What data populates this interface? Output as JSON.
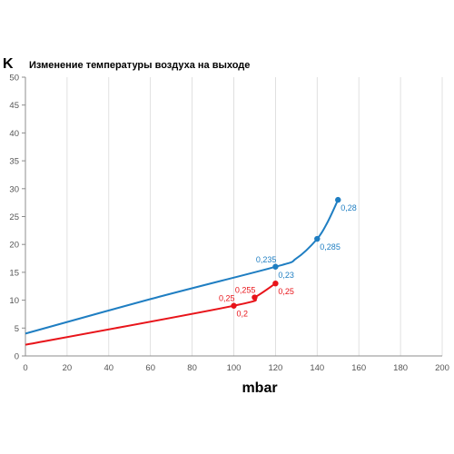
{
  "chart_data": {
    "type": "line",
    "title": "Изменение температуры воздуха на выходе",
    "xlabel": "mbar",
    "ylabel": "K",
    "xlim": [
      0,
      200
    ],
    "ylim": [
      0,
      50
    ],
    "xticks": [
      0,
      20,
      40,
      60,
      80,
      100,
      120,
      140,
      160,
      180,
      200
    ],
    "yticks": [
      0,
      5,
      10,
      15,
      20,
      25,
      30,
      35,
      40,
      45,
      50
    ],
    "grid": "vertical",
    "legend": "none",
    "series": [
      {
        "color": "#1f7ec2",
        "line": [
          [
            0,
            4
          ],
          [
            60,
            10.2
          ],
          [
            120,
            16
          ],
          [
            130,
            17.5
          ],
          [
            140,
            21
          ],
          [
            145,
            24
          ],
          [
            150,
            28
          ]
        ],
        "markers": [
          [
            120,
            16
          ],
          [
            140,
            21
          ],
          [
            150,
            28
          ]
        ]
      },
      {
        "color": "#e8141a",
        "line": [
          [
            0,
            2
          ],
          [
            100,
            9
          ],
          [
            110,
            10.5
          ],
          [
            120,
            13
          ]
        ],
        "markers": [
          [
            100,
            9
          ],
          [
            110,
            10.5
          ],
          [
            120,
            13
          ]
        ]
      }
    ],
    "annotations": [
      {
        "text": "0,28",
        "x": 150,
        "y": 28,
        "color": "#1f7ec2",
        "anchor": "below-right"
      },
      {
        "text": "0,285",
        "x": 140,
        "y": 21,
        "color": "#1f7ec2",
        "anchor": "below-right"
      },
      {
        "text": "0,235",
        "x": 120,
        "y": 16,
        "color": "#1f7ec2",
        "anchor": "above-left"
      },
      {
        "text": "0,23",
        "x": 120,
        "y": 16,
        "color": "#1f7ec2",
        "anchor": "below-right"
      },
      {
        "text": "0,25",
        "x": 120,
        "y": 13,
        "color": "#e8141a",
        "anchor": "below-right"
      },
      {
        "text": "0,255",
        "x": 110,
        "y": 10.5,
        "color": "#e8141a",
        "anchor": "above-left"
      },
      {
        "text": "0,25",
        "x": 100,
        "y": 9,
        "color": "#e8141a",
        "anchor": "above-left"
      },
      {
        "text": "0,2",
        "x": 100,
        "y": 9,
        "color": "#e8141a",
        "anchor": "below-right"
      }
    ]
  }
}
